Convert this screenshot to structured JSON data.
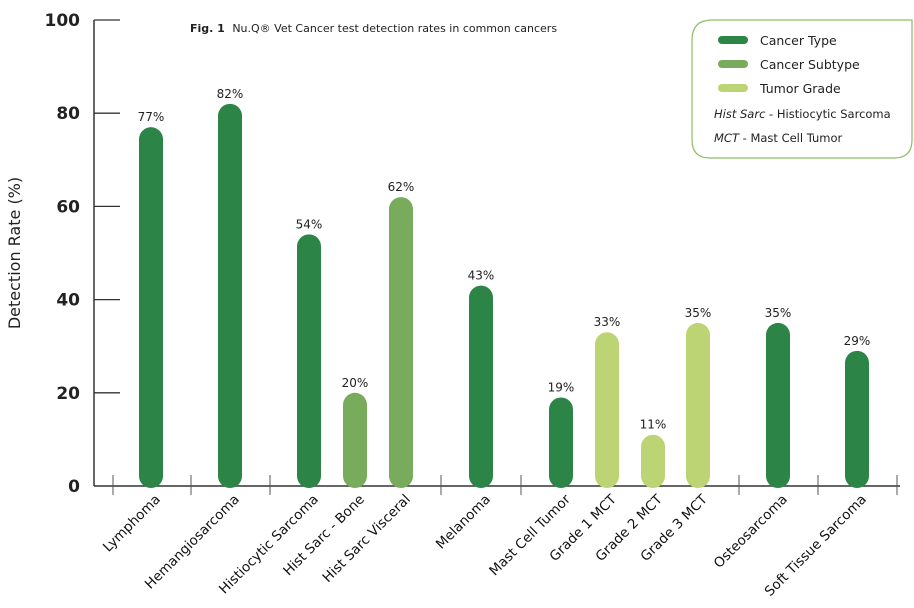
{
  "chart_data": {
    "type": "bar",
    "title_prefix": "Fig. 1",
    "title": "Nu.Q® Vet Cancer test detection rates in common cancers",
    "xlabel": "",
    "ylabel": "Detection Rate (%)",
    "ylim": [
      0,
      100
    ],
    "yticks": [
      "0",
      "20",
      "40",
      "60",
      "80",
      "100"
    ],
    "grid": false,
    "legend_position": "top-right",
    "categories": [
      "Lymphoma",
      "Hemangiosarcoma",
      "Histiocytic Sarcoma",
      "Hist Sarc - Bone",
      "Hist Sarc Visceral",
      "Melanoma",
      "Mast Cell Tumor",
      "Grade 1 MCT",
      "Grade 2 MCT",
      "Grade 3 MCT",
      "Osteosarcoma",
      "Soft Tissue Sarcoma"
    ],
    "values": [
      77,
      82,
      54,
      20,
      62,
      43,
      19,
      33,
      11,
      35,
      35,
      29
    ],
    "data_labels": [
      "77%",
      "82%",
      "54%",
      "20%",
      "62%",
      "43%",
      "19%",
      "33%",
      "11%",
      "35%",
      "35%",
      "29%"
    ],
    "bar_groups": [
      "Cancer Type",
      "Cancer Type",
      "Cancer Type",
      "Cancer Subtype",
      "Cancer Subtype",
      "Cancer Type",
      "Cancer Type",
      "Tumor Grade",
      "Tumor Grade",
      "Tumor Grade",
      "Cancer Type",
      "Cancer Type"
    ],
    "legend": [
      {
        "name": "Cancer Type",
        "color": "#2d8447"
      },
      {
        "name": "Cancer Subtype",
        "color": "#78ab5c"
      },
      {
        "name": "Tumor Grade",
        "color": "#bcd474"
      }
    ],
    "legend_notes": [
      {
        "abbr": "Hist Sarc",
        "text": " - Histiocytic Sarcoma"
      },
      {
        "abbr": "MCT",
        "text": " - Mast Cell Tumor"
      }
    ],
    "legend_border_color": "#8cbf64"
  }
}
